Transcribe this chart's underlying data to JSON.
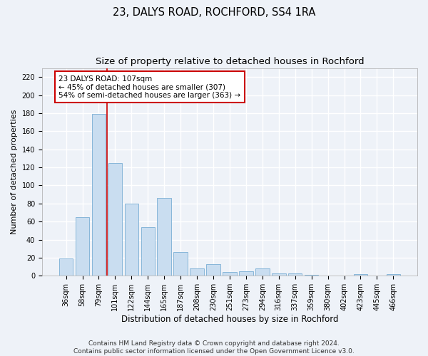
{
  "title": "23, DALYS ROAD, ROCHFORD, SS4 1RA",
  "subtitle": "Size of property relative to detached houses in Rochford",
  "xlabel": "Distribution of detached houses by size in Rochford",
  "ylabel": "Number of detached properties",
  "categories": [
    "36sqm",
    "58sqm",
    "79sqm",
    "101sqm",
    "122sqm",
    "144sqm",
    "165sqm",
    "187sqm",
    "208sqm",
    "230sqm",
    "251sqm",
    "273sqm",
    "294sqm",
    "316sqm",
    "337sqm",
    "359sqm",
    "380sqm",
    "402sqm",
    "423sqm",
    "445sqm",
    "466sqm"
  ],
  "values": [
    19,
    65,
    179,
    125,
    80,
    54,
    86,
    26,
    8,
    13,
    4,
    5,
    8,
    3,
    3,
    1,
    0,
    0,
    2,
    0,
    2
  ],
  "bar_color": "#c9ddf0",
  "bar_edge_color": "#7aaed4",
  "bg_color": "#eef2f8",
  "grid_color": "#ffffff",
  "annotation_text": "23 DALYS ROAD: 107sqm\n← 45% of detached houses are smaller (307)\n54% of semi-detached houses are larger (363) →",
  "annotation_box_color": "#ffffff",
  "annotation_box_edge": "#cc0000",
  "vline_x": 2.5,
  "vline_color": "#cc0000",
  "ylim": [
    0,
    230
  ],
  "yticks": [
    0,
    20,
    40,
    60,
    80,
    100,
    120,
    140,
    160,
    180,
    200,
    220
  ],
  "footer": "Contains HM Land Registry data © Crown copyright and database right 2024.\nContains public sector information licensed under the Open Government Licence v3.0.",
  "title_fontsize": 10.5,
  "subtitle_fontsize": 9.5,
  "xlabel_fontsize": 8.5,
  "ylabel_fontsize": 8,
  "tick_fontsize": 7,
  "annotation_fontsize": 7.5,
  "footer_fontsize": 6.5
}
